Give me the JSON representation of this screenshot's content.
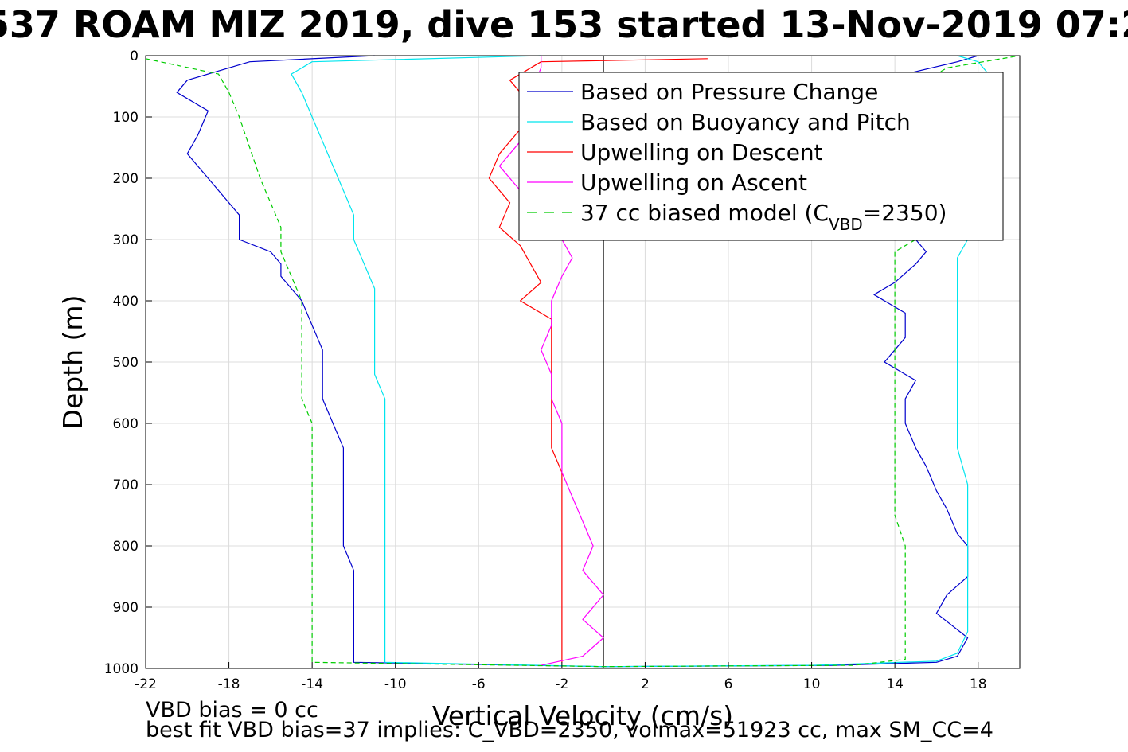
{
  "chart_data": {
    "type": "line",
    "title": "537 ROAM MIZ 2019, dive 153 started 13-Nov-2019 07:2",
    "xlabel": "Vertical Velocity (cm/s)",
    "ylabel": "Depth (m)",
    "xlim": [
      -22,
      20
    ],
    "ylim": [
      0,
      1000
    ],
    "y_reversed": true,
    "grid": true,
    "x_ticks": [
      -22,
      -18,
      -14,
      -10,
      -6,
      -2,
      2,
      6,
      10,
      14,
      18
    ],
    "y_ticks": [
      0,
      100,
      200,
      300,
      400,
      500,
      600,
      700,
      800,
      900,
      1000
    ],
    "zero_line_x": 0,
    "legend_position": "top-right",
    "series": [
      {
        "name": "Based on Pressure Change",
        "color": "#0000cc",
        "style": "solid",
        "points": [
          [
            -11,
            0
          ],
          [
            -17,
            10
          ],
          [
            -20,
            40
          ],
          [
            -20.5,
            60
          ],
          [
            -19,
            90
          ],
          [
            -19.5,
            130
          ],
          [
            -20,
            160
          ],
          [
            -19.5,
            180
          ],
          [
            -18.5,
            220
          ],
          [
            -17.5,
            260
          ],
          [
            -17.5,
            300
          ],
          [
            -16,
            320
          ],
          [
            -15.5,
            340
          ],
          [
            -15.5,
            360
          ],
          [
            -15,
            380
          ],
          [
            -14.5,
            400
          ],
          [
            -14,
            440
          ],
          [
            -13.5,
            480
          ],
          [
            -13.5,
            520
          ],
          [
            -13.5,
            560
          ],
          [
            -13,
            600
          ],
          [
            -12.5,
            640
          ],
          [
            -12.5,
            680
          ],
          [
            -12.5,
            720
          ],
          [
            -12.5,
            760
          ],
          [
            -12.5,
            800
          ],
          [
            -12,
            840
          ],
          [
            -12,
            880
          ],
          [
            -12,
            920
          ],
          [
            -12,
            960
          ],
          [
            -12,
            990
          ],
          [
            0,
            997
          ],
          [
            0,
            997
          ],
          [
            11,
            995
          ],
          [
            16,
            990
          ],
          [
            17,
            980
          ],
          [
            17.5,
            950
          ],
          [
            16,
            910
          ],
          [
            16.5,
            880
          ],
          [
            17.5,
            850
          ],
          [
            17.5,
            800
          ],
          [
            17,
            780
          ],
          [
            16.5,
            740
          ],
          [
            16,
            710
          ],
          [
            15.5,
            670
          ],
          [
            15,
            640
          ],
          [
            14.5,
            600
          ],
          [
            14.5,
            560
          ],
          [
            15,
            530
          ],
          [
            13.5,
            500
          ],
          [
            14.5,
            460
          ],
          [
            14.5,
            420
          ],
          [
            13,
            390
          ],
          [
            14,
            370
          ],
          [
            15,
            340
          ],
          [
            15.5,
            320
          ],
          [
            15,
            300
          ],
          [
            15,
            200
          ],
          [
            15,
            100
          ],
          [
            14.5,
            30
          ],
          [
            17,
            10
          ],
          [
            18,
            0
          ]
        ]
      },
      {
        "name": "Based on Buoyancy and Pitch",
        "color": "#00e5ee",
        "style": "solid",
        "points": [
          [
            -3,
            0
          ],
          [
            -14,
            10
          ],
          [
            -15,
            30
          ],
          [
            -14.5,
            60
          ],
          [
            -14,
            100
          ],
          [
            -13.5,
            140
          ],
          [
            -13,
            180
          ],
          [
            -12.5,
            220
          ],
          [
            -12,
            260
          ],
          [
            -12,
            300
          ],
          [
            -11.5,
            340
          ],
          [
            -11,
            380
          ],
          [
            -11,
            420
          ],
          [
            -11,
            460
          ],
          [
            -11,
            520
          ],
          [
            -10.5,
            560
          ],
          [
            -10.5,
            600
          ],
          [
            -10.5,
            640
          ],
          [
            -10.5,
            700
          ],
          [
            -10.5,
            760
          ],
          [
            -10.5,
            800
          ],
          [
            -10.5,
            840
          ],
          [
            -10.5,
            880
          ],
          [
            -10.5,
            920
          ],
          [
            -10.5,
            960
          ],
          [
            -10.5,
            990
          ],
          [
            0,
            997
          ],
          [
            0,
            997
          ],
          [
            10,
            995
          ],
          [
            16,
            988
          ],
          [
            17,
            975
          ],
          [
            17.5,
            940
          ],
          [
            17.5,
            900
          ],
          [
            17.5,
            860
          ],
          [
            17.5,
            820
          ],
          [
            17.5,
            790
          ],
          [
            17.5,
            760
          ],
          [
            17.5,
            700
          ],
          [
            17,
            640
          ],
          [
            17,
            580
          ],
          [
            17,
            520
          ],
          [
            17,
            460
          ],
          [
            17,
            420
          ],
          [
            17,
            380
          ],
          [
            17,
            330
          ],
          [
            17.5,
            300
          ],
          [
            19,
            180
          ],
          [
            19,
            140
          ],
          [
            18.5,
            100
          ],
          [
            19,
            60
          ],
          [
            18.5,
            30
          ],
          [
            18,
            10
          ],
          [
            17,
            0
          ]
        ]
      },
      {
        "name": "Upwelling on Descent",
        "color": "#ff0000",
        "style": "solid",
        "points": [
          [
            5,
            5
          ],
          [
            -3,
            10
          ],
          [
            -4.5,
            40
          ],
          [
            -3.5,
            80
          ],
          [
            -4,
            120
          ],
          [
            -5,
            160
          ],
          [
            -5.5,
            200
          ],
          [
            -4.5,
            240
          ],
          [
            -5,
            280
          ],
          [
            -4,
            310
          ],
          [
            -3.5,
            340
          ],
          [
            -3,
            370
          ],
          [
            -4,
            400
          ],
          [
            -2.5,
            430
          ],
          [
            -2.5,
            470
          ],
          [
            -2.5,
            520
          ],
          [
            -2.5,
            560
          ],
          [
            -2.5,
            600
          ],
          [
            -2.5,
            640
          ],
          [
            -2,
            680
          ],
          [
            -2,
            720
          ],
          [
            -2,
            760
          ],
          [
            -2,
            800
          ],
          [
            -2,
            840
          ],
          [
            -2,
            880
          ],
          [
            -2,
            920
          ],
          [
            -2,
            960
          ],
          [
            -2,
            990
          ]
        ]
      },
      {
        "name": "Upwelling on Ascent",
        "color": "#ff00ff",
        "style": "solid",
        "points": [
          [
            -3,
            0
          ],
          [
            -3,
            20
          ],
          [
            -3.5,
            60
          ],
          [
            -3,
            100
          ],
          [
            -4,
            140
          ],
          [
            -5,
            180
          ],
          [
            -4,
            220
          ],
          [
            -3,
            260
          ],
          [
            -2,
            300
          ],
          [
            -1.5,
            330
          ],
          [
            -2,
            360
          ],
          [
            -2.5,
            400
          ],
          [
            -2.5,
            440
          ],
          [
            -3,
            480
          ],
          [
            -2.5,
            520
          ],
          [
            -2.5,
            560
          ],
          [
            -2,
            600
          ],
          [
            -2,
            640
          ],
          [
            -2,
            680
          ],
          [
            -1.5,
            720
          ],
          [
            -1,
            760
          ],
          [
            -0.5,
            800
          ],
          [
            -1,
            840
          ],
          [
            0,
            880
          ],
          [
            -1,
            920
          ],
          [
            0,
            950
          ],
          [
            -1,
            980
          ],
          [
            -3,
            995
          ]
        ]
      },
      {
        "name": "37 cc biased model (C_VBD=2350)",
        "color": "#00cc00",
        "style": "dashed",
        "points": [
          [
            -22,
            5
          ],
          [
            -18.5,
            30
          ],
          [
            -18,
            60
          ],
          [
            -17.5,
            100
          ],
          [
            -17,
            150
          ],
          [
            -16.5,
            200
          ],
          [
            -16,
            240
          ],
          [
            -15.5,
            280
          ],
          [
            -15.5,
            320
          ],
          [
            -15,
            360
          ],
          [
            -14.5,
            400
          ],
          [
            -14.5,
            440
          ],
          [
            -14.5,
            480
          ],
          [
            -14.5,
            520
          ],
          [
            -14.5,
            560
          ],
          [
            -14,
            600
          ],
          [
            -14,
            640
          ],
          [
            -14,
            700
          ],
          [
            -14,
            760
          ],
          [
            -14,
            800
          ],
          [
            -14,
            840
          ],
          [
            -14,
            880
          ],
          [
            -14,
            920
          ],
          [
            -14,
            960
          ],
          [
            -14,
            990
          ],
          [
            0,
            997
          ],
          [
            0,
            997
          ],
          [
            12,
            995
          ],
          [
            14.5,
            985
          ],
          [
            14.5,
            950
          ],
          [
            14.5,
            900
          ],
          [
            14.5,
            850
          ],
          [
            14.5,
            800
          ],
          [
            14,
            750
          ],
          [
            14,
            700
          ],
          [
            14,
            650
          ],
          [
            14,
            600
          ],
          [
            14,
            550
          ],
          [
            14,
            500
          ],
          [
            14,
            450
          ],
          [
            14,
            400
          ],
          [
            14,
            350
          ],
          [
            14,
            320
          ],
          [
            15,
            300
          ],
          [
            15,
            200
          ],
          [
            15,
            100
          ],
          [
            15.5,
            40
          ],
          [
            16.5,
            20
          ],
          [
            20,
            0
          ]
        ]
      }
    ],
    "legend": {
      "entries": [
        {
          "text": "Based on Pressure Change",
          "color": "#0000cc",
          "style": "solid"
        },
        {
          "text": "Based on Buoyancy and Pitch",
          "color": "#00e5ee",
          "style": "solid"
        },
        {
          "text": "Upwelling on Descent",
          "color": "#ff0000",
          "style": "solid"
        },
        {
          "text": "Upwelling on Ascent",
          "color": "#ff00ff",
          "style": "solid"
        },
        {
          "text": "37 cc biased model (C",
          "sub": "VBD",
          "tail": "=2350)",
          "color": "#00cc00",
          "style": "dashed"
        }
      ]
    },
    "footer_lines": [
      "VBD bias = 0 cc",
      "best fit VBD bias=37 implies: C_VBD=2350, volmax=51923 cc, max SM_CC=4"
    ]
  }
}
